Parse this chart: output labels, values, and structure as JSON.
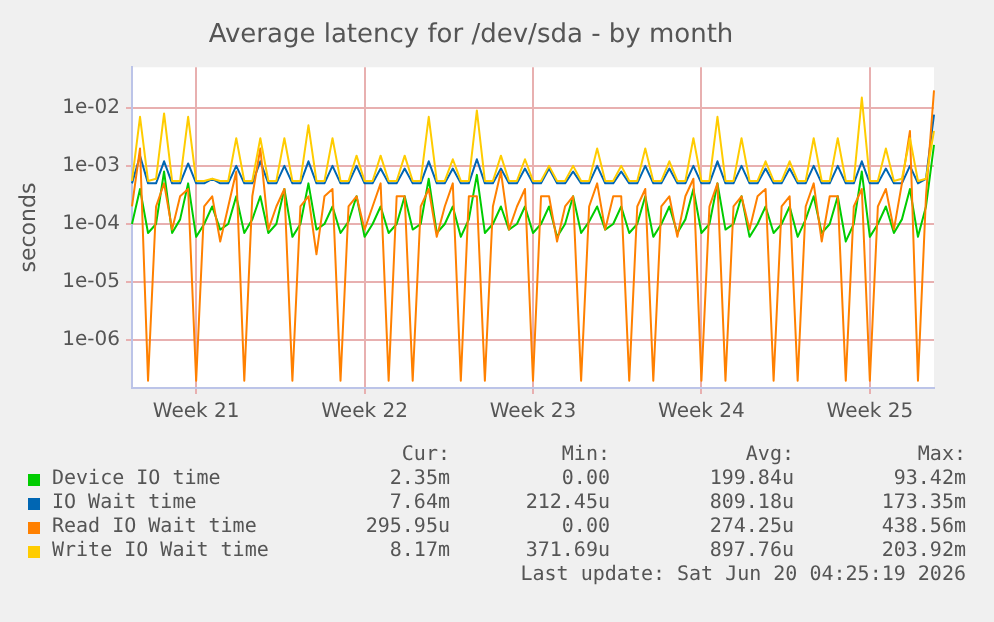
{
  "chart_data": {
    "type": "line",
    "title": "Average latency for /dev/sda - by month",
    "ylabel": "seconds",
    "categories": [
      null,
      null,
      null,
      null,
      null,
      null,
      null,
      null,
      "Week 21",
      null,
      null,
      null,
      null,
      null,
      null,
      null,
      null,
      null,
      null,
      null,
      null,
      null,
      null,
      null,
      null,
      null,
      null,
      null,
      null,
      "Week 22",
      null,
      null,
      null,
      null,
      null,
      null,
      null,
      null,
      null,
      null,
      null,
      null,
      null,
      null,
      null,
      null,
      null,
      null,
      null,
      null,
      "Week 23",
      null,
      null,
      null,
      null,
      null,
      null,
      null,
      null,
      null,
      null,
      null,
      null,
      null,
      null,
      null,
      null,
      null,
      null,
      null,
      null,
      "Week 24",
      null,
      null,
      null,
      null,
      null,
      null,
      null,
      null,
      null,
      null,
      null,
      null,
      null,
      null,
      null,
      null,
      null,
      null,
      null,
      null,
      "Week 25",
      null,
      null,
      null,
      null,
      null,
      null,
      null,
      null
    ],
    "log": "y",
    "ylim": [
      1.5e-07,
      0.05
    ],
    "yticks": [
      {
        "value": 1e-06,
        "label": "1e-06"
      },
      {
        "value": 1e-05,
        "label": "1e-05"
      },
      {
        "value": 0.0001,
        "label": "1e-04"
      },
      {
        "value": 0.001,
        "label": "1e-03"
      },
      {
        "value": 0.01,
        "label": "1e-02"
      }
    ],
    "grid": true,
    "legend": "bottom",
    "marker": "none",
    "line_style": "solid",
    "series": [
      {
        "name": "Device IO time",
        "color": "#00cc00",
        "values": [
          0.0001,
          0.0004,
          7e-05,
          0.0001,
          0.0008,
          7e-05,
          0.00012,
          0.0005,
          6e-05,
          0.0001,
          0.0002,
          8e-05,
          0.0001,
          0.0003,
          7e-05,
          0.00012,
          0.0003,
          7e-05,
          0.0001,
          0.0004,
          6e-05,
          0.0001,
          0.0005,
          8e-05,
          0.0001,
          0.0002,
          7e-05,
          0.00011,
          0.0003,
          6e-05,
          0.0001,
          0.0002,
          7e-05,
          0.0001,
          0.0003,
          8e-05,
          0.0001,
          0.0006,
          7e-05,
          0.0001,
          0.0002,
          6e-05,
          0.00012,
          0.0007,
          7e-05,
          0.0001,
          0.0002,
          8e-05,
          0.0001,
          0.0002,
          7e-05,
          0.0001,
          0.0002,
          6e-05,
          0.0001,
          0.0003,
          7e-05,
          0.00011,
          0.0002,
          8e-05,
          0.0001,
          0.0002,
          7e-05,
          0.0001,
          0.0003,
          6e-05,
          0.0001,
          0.0002,
          7e-05,
          0.00012,
          0.0004,
          7e-05,
          0.0001,
          0.0005,
          8e-05,
          0.0001,
          0.0003,
          6e-05,
          0.0001,
          0.0002,
          7e-05,
          0.0001,
          0.0002,
          6e-05,
          0.00012,
          0.0003,
          7e-05,
          0.0001,
          0.0003,
          5e-05,
          0.0001,
          0.0008,
          6e-05,
          0.0001,
          0.0002,
          7e-05,
          0.00012,
          0.0004,
          6e-05,
          0.0002,
          0.0023
        ]
      },
      {
        "name": "IO Wait time",
        "color": "#0066b3",
        "values": [
          0.0005,
          0.0015,
          0.0005,
          0.0005,
          0.0012,
          0.0005,
          0.0005,
          0.0011,
          0.0005,
          0.0005,
          0.0006,
          0.0005,
          0.0005,
          0.001,
          0.0005,
          0.0005,
          0.0012,
          0.0005,
          0.0005,
          0.001,
          0.0005,
          0.0005,
          0.0012,
          0.0005,
          0.0005,
          0.001,
          0.0005,
          0.0005,
          0.001,
          0.0005,
          0.0005,
          0.0009,
          0.0005,
          0.0005,
          0.0009,
          0.0005,
          0.0005,
          0.0012,
          0.0005,
          0.0005,
          0.0009,
          0.0005,
          0.0005,
          0.0013,
          0.0005,
          0.0005,
          0.0009,
          0.0005,
          0.0005,
          0.0009,
          0.0005,
          0.0005,
          0.0009,
          0.0005,
          0.0005,
          0.0008,
          0.0005,
          0.0005,
          0.001,
          0.0005,
          0.0005,
          0.0008,
          0.0005,
          0.0005,
          0.001,
          0.0005,
          0.0005,
          0.0009,
          0.0005,
          0.0005,
          0.001,
          0.0005,
          0.0005,
          0.0012,
          0.0005,
          0.0005,
          0.001,
          0.0005,
          0.0005,
          0.0009,
          0.0005,
          0.0005,
          0.0009,
          0.0005,
          0.0005,
          0.001,
          0.0005,
          0.0005,
          0.001,
          0.0005,
          0.0005,
          0.0012,
          0.0005,
          0.0005,
          0.0009,
          0.0005,
          0.0005,
          0.001,
          0.0005,
          0.0006,
          0.0076
        ]
      },
      {
        "name": "Read IO Wait time",
        "color": "#ff8000",
        "values": [
          0.0002,
          0.002,
          2e-07,
          0.0002,
          0.0005,
          8e-05,
          0.0003,
          0.0004,
          2e-07,
          0.0002,
          0.0003,
          5e-05,
          0.0002,
          0.0008,
          2e-07,
          0.0003,
          0.002,
          8e-05,
          0.0002,
          0.0004,
          2e-07,
          0.0002,
          0.0003,
          3e-05,
          0.0003,
          0.0004,
          2e-07,
          0.0002,
          0.0003,
          8e-05,
          0.0002,
          0.0005,
          2e-07,
          0.0003,
          0.0003,
          2e-07,
          0.0002,
          0.0004,
          6e-05,
          0.0002,
          0.0005,
          2e-07,
          0.0003,
          0.0003,
          2e-07,
          0.0002,
          0.0008,
          8e-05,
          0.0002,
          0.0004,
          2e-07,
          0.0003,
          0.0003,
          5e-05,
          0.0002,
          0.0003,
          2e-07,
          0.0002,
          0.0005,
          8e-05,
          0.0003,
          0.0003,
          2e-07,
          0.0002,
          0.0004,
          2e-07,
          0.0002,
          0.0003,
          6e-05,
          0.0003,
          0.0006,
          2e-07,
          0.0002,
          0.0005,
          2e-07,
          0.0002,
          0.0003,
          8e-05,
          0.0003,
          0.0004,
          2e-07,
          0.0002,
          0.0003,
          2e-07,
          0.0002,
          0.0005,
          5e-05,
          0.0003,
          0.0003,
          2e-07,
          0.0002,
          0.0004,
          2e-07,
          0.0002,
          0.0004,
          8e-05,
          0.0005,
          0.004,
          2e-07,
          0.0003,
          0.02
        ]
      },
      {
        "name": "Write IO Wait time",
        "color": "#ffcc00",
        "values": [
          0.00055,
          0.007,
          0.00055,
          0.0006,
          0.008,
          0.00055,
          0.00055,
          0.007,
          0.00055,
          0.00055,
          0.0006,
          0.00055,
          0.00055,
          0.003,
          0.00055,
          0.00055,
          0.003,
          0.00055,
          0.00055,
          0.003,
          0.00055,
          0.00055,
          0.005,
          0.00055,
          0.00055,
          0.003,
          0.00055,
          0.00055,
          0.0015,
          0.00055,
          0.00055,
          0.0015,
          0.00055,
          0.00055,
          0.0015,
          0.00055,
          0.00055,
          0.007,
          0.00055,
          0.00055,
          0.0013,
          0.00055,
          0.00055,
          0.009,
          0.00055,
          0.00055,
          0.0015,
          0.00055,
          0.00055,
          0.0013,
          0.00055,
          0.00055,
          0.001,
          0.00055,
          0.00055,
          0.001,
          0.00055,
          0.00055,
          0.002,
          0.00055,
          0.00055,
          0.001,
          0.00055,
          0.00055,
          0.002,
          0.00055,
          0.00055,
          0.0012,
          0.00055,
          0.00055,
          0.003,
          0.00055,
          0.00055,
          0.007,
          0.00055,
          0.00055,
          0.003,
          0.00055,
          0.00055,
          0.0012,
          0.00055,
          0.00055,
          0.0012,
          0.00055,
          0.00055,
          0.003,
          0.00055,
          0.00055,
          0.003,
          0.00055,
          0.00055,
          0.015,
          0.00055,
          0.00055,
          0.002,
          0.00055,
          0.0006,
          0.003,
          0.00055,
          0.0006,
          0.004
        ]
      }
    ],
    "annotations": [
      "Cur:",
      "Min:",
      "Avg:",
      "Max:",
      "2.35m",
      "0.00",
      "199.84u",
      "93.42m",
      "7.64m",
      "212.45u",
      "809.18u",
      "173.35m",
      "295.95u",
      "0.00",
      "274.25u",
      "438.56m",
      "8.17m",
      "371.69u",
      "897.76u",
      "203.92m",
      "Last update: Sat Jun 20 04:25:19 2026"
    ]
  }
}
